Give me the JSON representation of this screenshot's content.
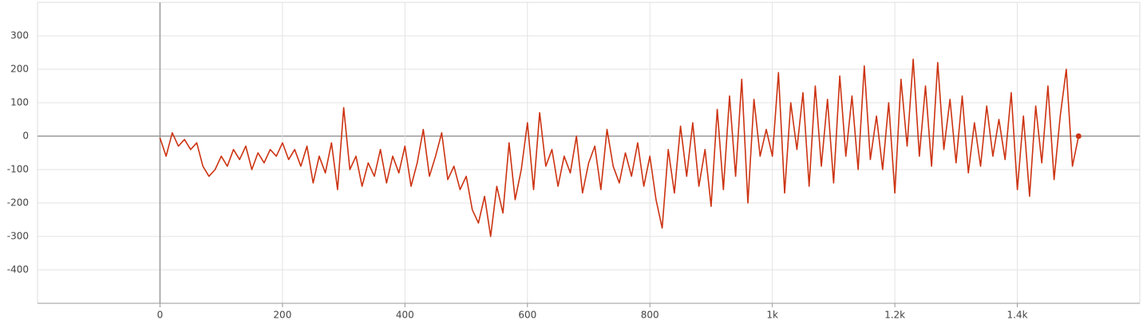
{
  "chart_data": {
    "type": "line",
    "x": [
      0,
      10,
      20,
      30,
      40,
      50,
      60,
      70,
      80,
      90,
      100,
      110,
      120,
      130,
      140,
      150,
      160,
      170,
      180,
      190,
      200,
      210,
      220,
      230,
      240,
      250,
      260,
      270,
      280,
      290,
      300,
      310,
      320,
      330,
      340,
      350,
      360,
      370,
      380,
      390,
      400,
      410,
      420,
      430,
      440,
      450,
      460,
      470,
      480,
      490,
      500,
      510,
      520,
      530,
      540,
      550,
      560,
      570,
      580,
      590,
      600,
      610,
      620,
      630,
      640,
      650,
      660,
      670,
      680,
      690,
      700,
      710,
      720,
      730,
      740,
      750,
      760,
      770,
      780,
      790,
      800,
      810,
      820,
      830,
      840,
      850,
      860,
      870,
      880,
      890,
      900,
      910,
      920,
      930,
      940,
      950,
      960,
      970,
      980,
      990,
      1000,
      1010,
      1020,
      1030,
      1040,
      1050,
      1060,
      1070,
      1080,
      1090,
      1100,
      1110,
      1120,
      1130,
      1140,
      1150,
      1160,
      1170,
      1180,
      1190,
      1200,
      1210,
      1220,
      1230,
      1240,
      1250,
      1260,
      1270,
      1280,
      1290,
      1300,
      1310,
      1320,
      1330,
      1340,
      1350,
      1360,
      1370,
      1380,
      1390,
      1400,
      1410,
      1420,
      1430,
      1440,
      1450,
      1460,
      1470,
      1480,
      1490,
      1500
    ],
    "series": [
      {
        "color": "#cc3311",
        "values": [
          -5,
          -60,
          10,
          -30,
          -10,
          -40,
          -20,
          -90,
          -120,
          -100,
          -60,
          -90,
          -40,
          -70,
          -30,
          -100,
          -50,
          -80,
          -40,
          -60,
          -20,
          -70,
          -40,
          -90,
          -30,
          -140,
          -60,
          -110,
          -20,
          -160,
          85,
          -100,
          -60,
          -150,
          -80,
          -120,
          -40,
          -140,
          -60,
          -110,
          -30,
          -150,
          -80,
          20,
          -120,
          -60,
          10,
          -130,
          -90,
          -160,
          -120,
          -220,
          -260,
          -180,
          -300,
          -150,
          -230,
          -20,
          -190,
          -100,
          40,
          -160,
          70,
          -90,
          -40,
          -150,
          -60,
          -110,
          0,
          -170,
          -80,
          -30,
          -160,
          20,
          -90,
          -140,
          -50,
          -120,
          -20,
          -150,
          -60,
          -190,
          -275,
          -40,
          -170,
          30,
          -120,
          40,
          -150,
          -40,
          -210,
          80,
          -160,
          120,
          -120,
          170,
          -200,
          110,
          -60,
          20,
          -60,
          190,
          -170,
          100,
          -40,
          130,
          -150,
          150,
          -90,
          110,
          -140,
          180,
          -60,
          120,
          -100,
          210,
          -70,
          60,
          -100,
          100,
          -170,
          170,
          -30,
          230,
          -60,
          150,
          -90,
          220,
          -40,
          110,
          -80,
          120,
          -110,
          40,
          -90,
          90,
          -60,
          50,
          -70,
          130,
          -160,
          60,
          -180,
          90,
          -80,
          150,
          -130,
          60,
          200,
          -90,
          0
        ]
      }
    ],
    "xlim": [
      -200,
      1600
    ],
    "xticks": [
      0,
      200,
      400,
      600,
      800,
      {
        "value": 1000,
        "label": "1k"
      },
      {
        "value": 1200,
        "label": "1.2k"
      },
      {
        "value": 1400,
        "label": "1.4k"
      }
    ],
    "ylim": [
      -500,
      400
    ],
    "yticks": [
      -400,
      -300,
      -200,
      -100,
      0,
      100,
      200,
      300
    ],
    "grid": true
  }
}
